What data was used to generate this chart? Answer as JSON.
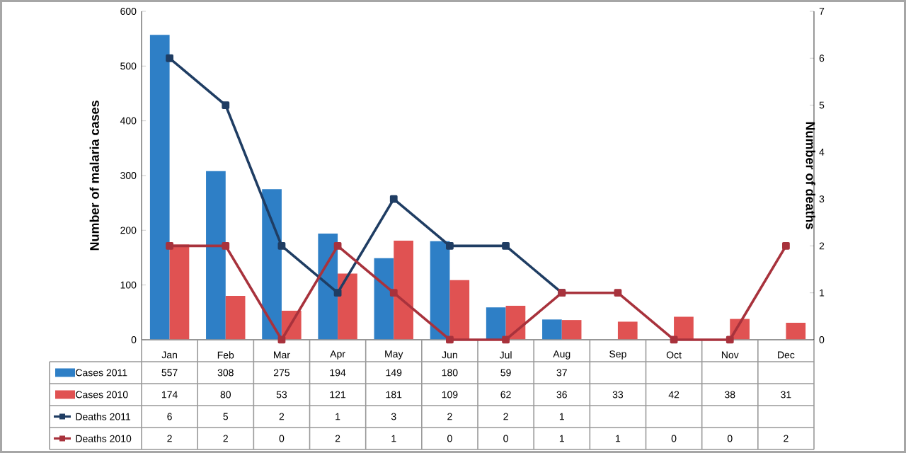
{
  "chart_data": {
    "type": "bar",
    "ylabel": "Number of malaria cases",
    "y2label": "Number of deaths",
    "categories": [
      "Jan",
      "Feb",
      "Mar",
      "Apr",
      "May",
      "Jun",
      "Jul",
      "Aug",
      "Sep",
      "Oct",
      "Nov",
      "Dec"
    ],
    "series": [
      {
        "name": "Cases 2011",
        "color": "#2e7fc6",
        "values": [
          557,
          308,
          275,
          194,
          149,
          180,
          59,
          37,
          null,
          null,
          null,
          null
        ]
      },
      {
        "name": "Cases 2010",
        "color": "#e05252",
        "values": [
          174,
          80,
          53,
          121,
          181,
          109,
          62,
          36,
          33,
          42,
          38,
          31
        ]
      },
      {
        "name": "Deaths 2011",
        "type": "line",
        "axis": "y2",
        "color": "#1f3d63",
        "values": [
          6,
          5,
          2,
          1,
          3,
          2,
          2,
          1,
          null,
          null,
          null,
          null
        ]
      },
      {
        "name": "Deaths 2010",
        "type": "line",
        "axis": "y2",
        "color": "#a8323c",
        "values": [
          2,
          2,
          0,
          2,
          1,
          0,
          0,
          1,
          1,
          0,
          0,
          2
        ]
      }
    ],
    "ylim": [
      0,
      600
    ],
    "yticks": [
      0,
      100,
      200,
      300,
      400,
      500,
      600
    ],
    "y2lim": [
      0,
      7
    ],
    "y2ticks": [
      0,
      1,
      2,
      3,
      4,
      5,
      6,
      7
    ],
    "marker": "square",
    "data_labels": true,
    "legend": "bottom"
  }
}
